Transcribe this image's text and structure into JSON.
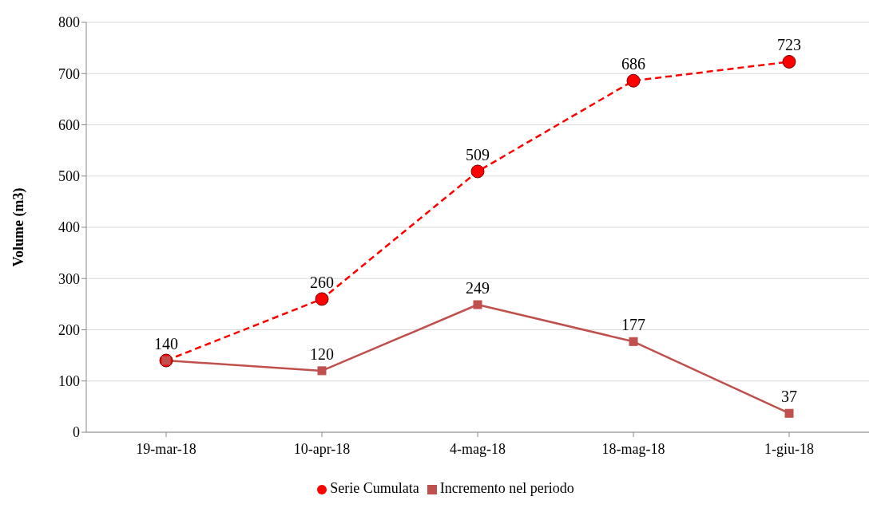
{
  "chart_data": {
    "type": "line",
    "ylabel": "Volume (m3)",
    "categories": [
      "19-mar-18",
      "10-apr-18",
      "4-mag-18",
      "18-mag-18",
      "1-giu-18"
    ],
    "series": [
      {
        "name": "Serie Cumulata",
        "color": "#ff0000",
        "values": [
          140,
          260,
          509,
          686,
          723
        ],
        "value_labels": [
          null,
          "260",
          "509",
          "686",
          "723"
        ],
        "marker": "circle",
        "line_style": "dashed"
      },
      {
        "name": "Incremento nel periodo",
        "color": "#c0504d",
        "values": [
          140,
          120,
          249,
          177,
          37
        ],
        "value_labels": [
          "140",
          "120",
          "249",
          "177",
          "37"
        ],
        "marker": "square",
        "line_style": "solid"
      }
    ],
    "ylim": [
      0,
      800
    ],
    "yticks": [
      0,
      100,
      200,
      300,
      400,
      500,
      600,
      700,
      800
    ],
    "grid": "y",
    "legend": "bottom"
  }
}
